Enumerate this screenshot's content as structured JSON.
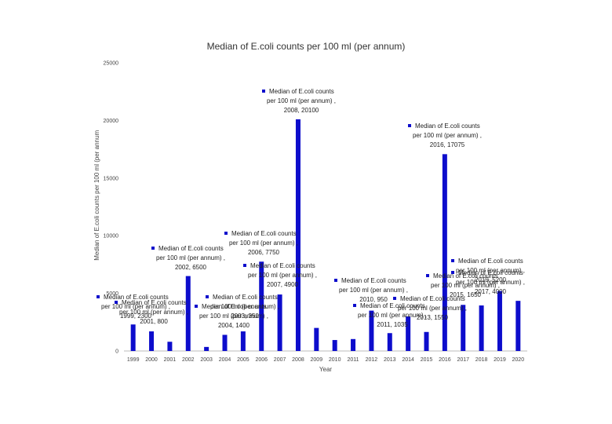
{
  "chart_data": {
    "type": "bar",
    "title": "Median of E.coli counts per 100 ml (per annum)",
    "xlabel": "Year",
    "ylabel": "Median of E.coli counts per 100 ml (per annum",
    "ylim": [
      0,
      25000
    ],
    "yticks": [
      0,
      5000,
      10000,
      15000,
      20000,
      25000
    ],
    "grid": false,
    "bar_color": "#0d0dcc",
    "categories": [
      "1999",
      "2000",
      "2001",
      "2002",
      "2003",
      "2004",
      "2005",
      "2006",
      "2007",
      "2008",
      "2009",
      "2010",
      "2011",
      "2012",
      "2013",
      "2014",
      "2015",
      "2016",
      "2017",
      "2018",
      "2019",
      "2020"
    ],
    "values": [
      2300,
      1700,
      800,
      6500,
      350,
      1400,
      1700,
      7750,
      4900,
      20100,
      2000,
      950,
      1035,
      3500,
      1550,
      3000,
      1650,
      17075,
      4000,
      3950,
      5200,
      4350
    ],
    "data_labels": [
      {
        "series": "Median of E.coli counts",
        "unit": "per 100 ml (per annum) ,",
        "point": "2008, 20100"
      },
      {
        "series": "Median of E.coli counts",
        "unit": "per 100 ml (per annum) ,",
        "point": "2016, 17075"
      },
      {
        "series": "Median of E.coli counts",
        "unit": "per 100 ml (per annum) ,",
        "point": "2006, 7750"
      },
      {
        "series": "Median of E.coli counts",
        "unit": "per 100 ml (per annum) ,",
        "point": "2002, 6500"
      },
      {
        "series": "Median of E.coli counts",
        "unit": "per 100 ml (per annum) ,",
        "point": "2007, 4900"
      },
      {
        "series": "Median of E.coli counts",
        "unit": "per 100 ml (per annum) ,",
        "point": "2019, 5200"
      },
      {
        "series": "Median of E.coli counts",
        "unit": "per 100 ml (per annum) ,",
        "point": "1999, 2300"
      },
      {
        "series": "Median of E.coli counts",
        "unit": "per 100 ml (per annum) ,",
        "point": "2001, 800"
      },
      {
        "series": "Median of E.coli counts",
        "unit": "per 100 ml (per annum) ,",
        "point": "2003, 350"
      },
      {
        "series": "Median of E.coli counts",
        "unit": "per 100 ml (per annum) ,",
        "point": "2004, 1400"
      },
      {
        "series": "Median of E.coli counts",
        "unit": "per 100 ml (per annum) ,",
        "point": "2010, 950"
      },
      {
        "series": "Median of E.coli counts",
        "unit": "per 100 ml (per annum) ,",
        "point": "2011, 1035"
      },
      {
        "series": "Median of E.coli counts",
        "unit": "per 100 ml (per annum) ,",
        "point": "2013, 1550"
      },
      {
        "series": "Median of E.coli counts",
        "unit": "per 100 ml (per annum) ,",
        "point": "2015, 1650"
      },
      {
        "series": "Median of E.coli counts",
        "unit": "per 100 ml (per annum) ,",
        "point": "2017, 4000"
      }
    ]
  }
}
